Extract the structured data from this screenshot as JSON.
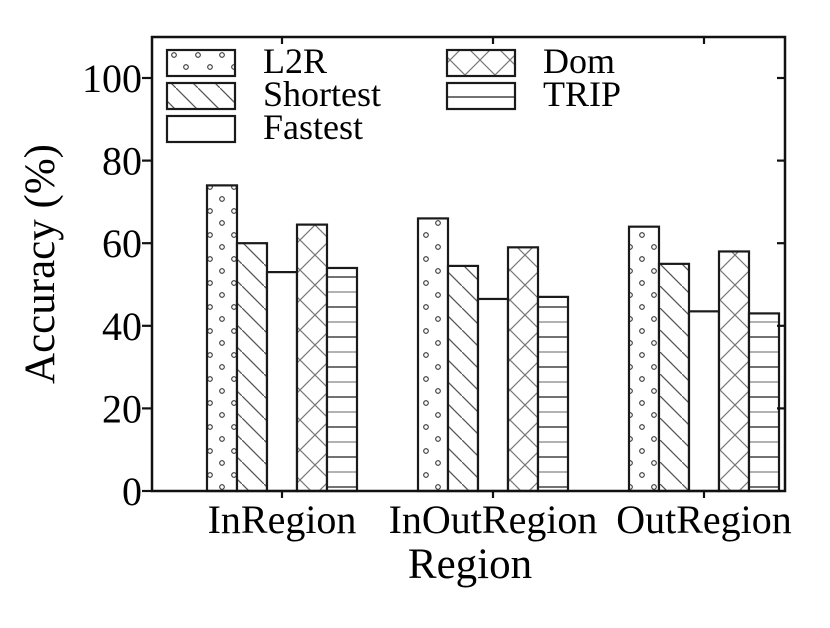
{
  "figure": {
    "background": "#ffffff",
    "border_color": "#111111",
    "text_color": "#000000"
  },
  "chart_data": {
    "type": "bar",
    "title": "",
    "xlabel": "Region",
    "ylabel": "Accuracy (%)",
    "categories": [
      "InRegion",
      "InOutRegion",
      "OutRegion"
    ],
    "series": [
      {
        "name": "L2R",
        "hatch": "dots",
        "values": [
          74,
          66,
          64
        ]
      },
      {
        "name": "Shortest",
        "hatch": "diagonal",
        "values": [
          60,
          54.5,
          55
        ]
      },
      {
        "name": "Fastest",
        "hatch": "none",
        "values": [
          53,
          46.5,
          43.5
        ]
      },
      {
        "name": "Dom",
        "hatch": "crosshatch",
        "values": [
          64.5,
          59,
          58
        ]
      },
      {
        "name": "TRIP",
        "hatch": "horizontal",
        "values": [
          54,
          47,
          43
        ]
      }
    ],
    "yticks": [
      0,
      20,
      40,
      60,
      80,
      100
    ],
    "ylim": [
      0,
      110
    ],
    "grid": false,
    "bar_fill": "#ffffff",
    "bar_edge_color": "#1a1a1a",
    "hatch_color_dark": "#444444",
    "hatch_color_light": "#999999",
    "legend_position": "upper-left inside plot, two columns",
    "legend_columns": [
      [
        "L2R",
        "Shortest",
        "Fastest"
      ],
      [
        "Dom",
        "TRIP"
      ]
    ]
  }
}
